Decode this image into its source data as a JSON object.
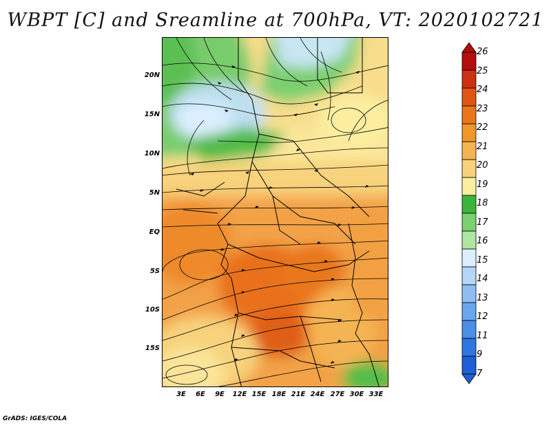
{
  "title": "WBPT [C] and Sreamline at 700hPa, VT: 2020102721",
  "credit": "GrADS: IGES/COLA",
  "lat_labels": [
    "20N",
    "15N",
    "10N",
    "5N",
    "EQ",
    "5S",
    "10S",
    "15S"
  ],
  "lon_labels": [
    "3E",
    "6E",
    "9E",
    "12E",
    "15E",
    "18E",
    "21E",
    "24E",
    "27E",
    "30E",
    "33E"
  ],
  "colorbar": {
    "labels": [
      "7",
      "9",
      "11",
      "12",
      "13",
      "14",
      "15",
      "16",
      "17",
      "18",
      "19",
      "20",
      "21",
      "22",
      "23",
      "24",
      "25",
      "26"
    ],
    "colors": [
      "#1f5fd6",
      "#2e76e0",
      "#4a8fe8",
      "#6aa6ee",
      "#8dbdf3",
      "#b4d6f7",
      "#dcefff",
      "#aee6a2",
      "#7ad071",
      "#3bb43c",
      "#fbee9f",
      "#f8d27b",
      "#f5b453",
      "#f0962b",
      "#e9771a",
      "#e05512",
      "#cf3010",
      "#b30d0d"
    ]
  },
  "map": {
    "field": "wet bulb potential temperature",
    "level": "700hPa",
    "lon_range": [
      0,
      35
    ],
    "lat_range": [
      -20,
      24
    ]
  }
}
